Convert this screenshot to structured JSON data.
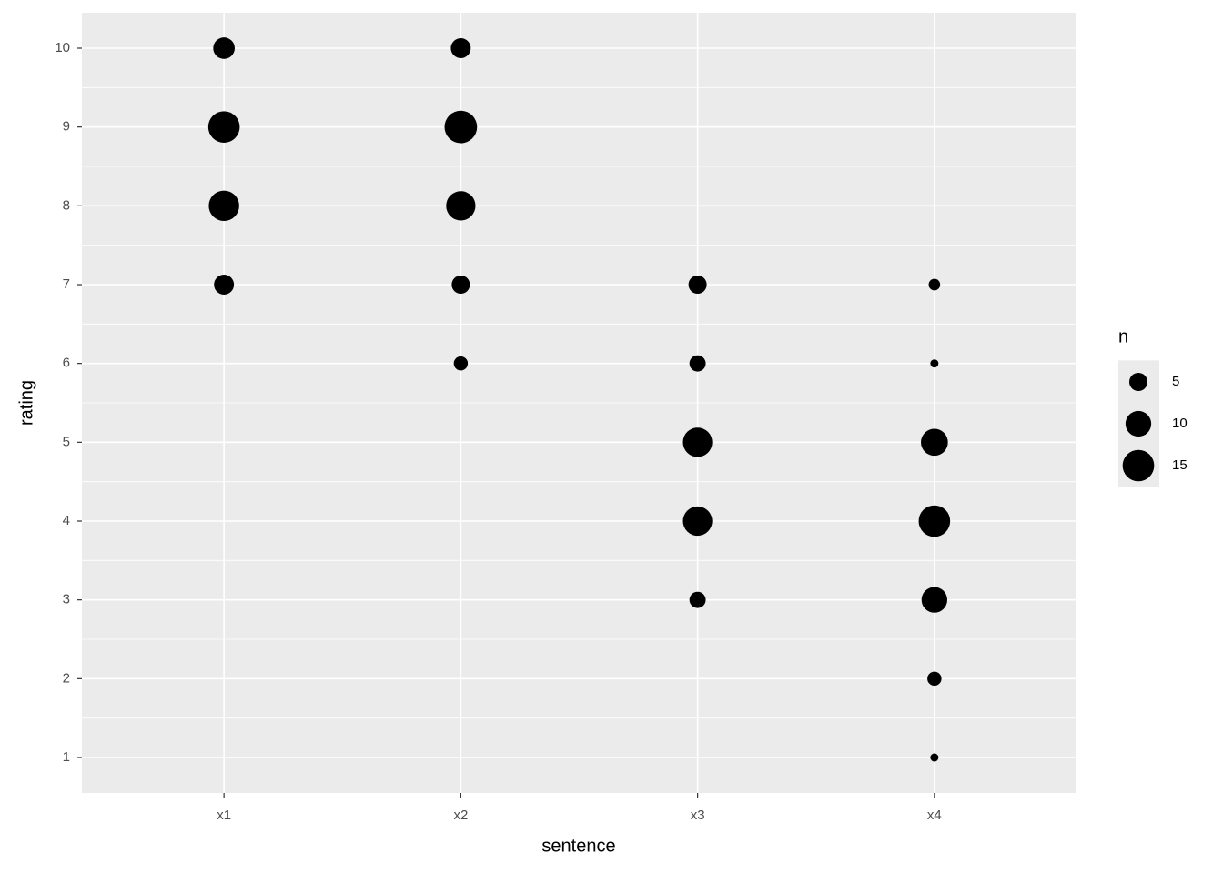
{
  "chart_data": {
    "type": "scatter",
    "x_label": "sentence",
    "y_label": "rating",
    "categories": [
      "x1",
      "x2",
      "x3",
      "x4"
    ],
    "ylim": [
      0.55,
      10.45
    ],
    "yticks": [
      1,
      2,
      3,
      4,
      5,
      6,
      7,
      8,
      9,
      10
    ],
    "grid": true,
    "color": "#000000",
    "legend": {
      "title": "n",
      "position": "right",
      "sizes": [
        5,
        10,
        15
      ]
    },
    "x": [
      "x1",
      "x1",
      "x1",
      "x1",
      "x2",
      "x2",
      "x2",
      "x2",
      "x2",
      "x3",
      "x3",
      "x3",
      "x3",
      "x3",
      "x4",
      "x4",
      "x4",
      "x4",
      "x4",
      "x4",
      "x4"
    ],
    "y": [
      10,
      9,
      8,
      7,
      10,
      9,
      8,
      7,
      6,
      7,
      6,
      5,
      4,
      3,
      7,
      6,
      5,
      4,
      3,
      2,
      1
    ],
    "size": [
      7,
      15,
      14,
      6,
      6,
      16,
      13,
      5,
      3,
      5,
      4,
      13,
      13,
      4,
      2,
      1,
      11,
      15,
      10,
      3,
      1
    ]
  }
}
